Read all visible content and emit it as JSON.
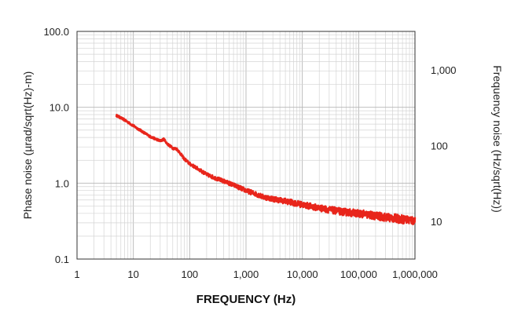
{
  "chart_data": {
    "type": "line",
    "xlabel": "FREQUENCY (Hz)",
    "ylabel": "Phase noise (µrad/sqrt(Hz)-m)",
    "y2label": "Frequency noise (Hz/sqrt(Hz))",
    "x_scale": "log",
    "y_scale": "log",
    "xlim": [
      1,
      1000000
    ],
    "ylim": [
      0.1,
      100
    ],
    "y2lim": [
      3.2,
      3200
    ],
    "grid": true,
    "x_ticks": [
      "1",
      "10",
      "100",
      "1,000",
      "10,000",
      "100,000",
      "1,000,000"
    ],
    "y_ticks": [
      "100.0",
      "10.0",
      "1.0",
      "0.1"
    ],
    "y2_ticks": [
      "1,000",
      "100",
      "10"
    ],
    "line_color": "#e8251b",
    "series": [
      {
        "x": [
          5,
          7,
          10,
          15,
          20,
          30,
          35,
          40,
          50,
          60,
          70,
          80,
          100,
          150,
          200,
          300,
          500,
          700,
          1000,
          1500,
          2000,
          3000,
          5000,
          7000,
          10000,
          20000,
          50000,
          100000,
          200000,
          500000,
          1000000
        ],
        "y": [
          7.8,
          6.8,
          5.7,
          4.7,
          4.1,
          3.6,
          3.8,
          3.3,
          2.9,
          2.8,
          2.4,
          2.1,
          1.8,
          1.5,
          1.3,
          1.15,
          1.0,
          0.9,
          0.8,
          0.72,
          0.66,
          0.62,
          0.58,
          0.55,
          0.52,
          0.47,
          0.42,
          0.4,
          0.37,
          0.34,
          0.32
        ]
      }
    ]
  }
}
